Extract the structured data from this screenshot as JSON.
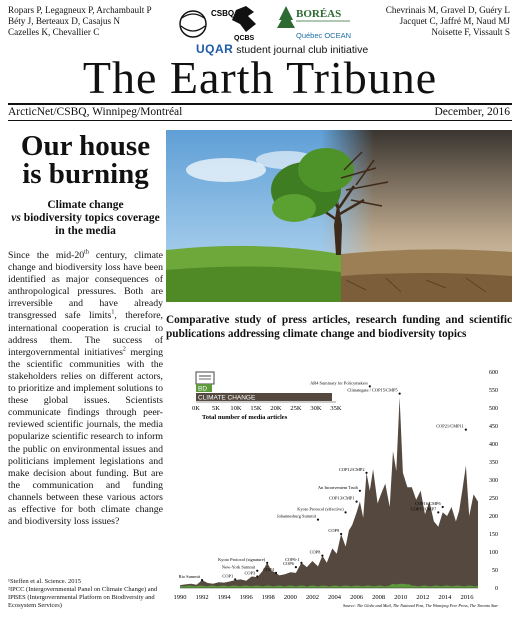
{
  "authors_left": [
    "Ropars P, Legagneux P, Archambault P",
    "Béty J, Berteaux D, Casajus N",
    "Cazelles K, Chevallier C"
  ],
  "authors_right": [
    "Chevrinais M, Gravel D, Guéry L",
    "Jacquet C, Jaffré M, Naud MJ",
    "Noisette F, Vissault S"
  ],
  "logos": {
    "csbq": "CSBQ",
    "qcbs": "QCBS",
    "boreas": "BORÉAS",
    "quebec_ocean": "Québec OCEAN"
  },
  "uqar_line": {
    "brand": "UQAR",
    "text": "student journal club initiative"
  },
  "masthead": "The Earth Tribune",
  "place": "ArcticNet/CSBQ, Winnipeg/Montréal",
  "date": "December, 2016",
  "headline": "Our house is burning",
  "subhead_line1": "Climate change",
  "subhead_vs": "vs",
  "subhead_line2": "biodiversity topics coverage in the media",
  "body": {
    "p1": "Since the mid-20",
    "p1_sup": "th",
    "p2": " century, climate change and biodiversity loss have been identified as major consequences of anthropological pressures. Both are irreversible and have already transgressed safe limits",
    "p2_sup": "1",
    "p3": ", therefore, international cooperation is crucial to address them. The success of intergovernmental initiatives",
    "p3_sup": "2",
    "p4": " merging the scientific communities with the stakeholders relies on different actors, to prioritize and implement solutions to these global issues. Scientists communicate findings through peer-reviewed scientific journals, the media popularize scientific research to inform the public on environmental issues and politicians implement legislations and make decision about funding. But are the communication and funding channels between these various actors as effective for both climate change and biodiversity loss issues?"
  },
  "refs": [
    "¹Steffen et al. Science. 2015",
    "²IPCC (Intergovernmental Panel on Climate Change) and IPBES (Intergovernmental Platform on Biodiversity and Ecosystem Services)"
  ],
  "study_title": "Comparative study of press articles, research funding and scientific publications addressing climate change and biodiversity topics",
  "chart_data": {
    "type": "area",
    "bar_inset": {
      "type": "bar",
      "categories": [
        "BD",
        "CLIMATE CHANGE"
      ],
      "values": [
        4000,
        34000
      ],
      "ticks": [
        "0K",
        "5K",
        "10K",
        "15K",
        "20K",
        "25K",
        "30K",
        "35K"
      ],
      "xlabel": "Total number of media articles",
      "xlim": [
        0,
        35000
      ]
    },
    "x_ticks": [
      "1990",
      "1992",
      "1994",
      "1996",
      "1998",
      "2000",
      "2002",
      "2004",
      "2006",
      "2008",
      "2010",
      "2012",
      "2014",
      "2016"
    ],
    "y_ticks": [
      "0",
      "50",
      "100",
      "150",
      "200",
      "250",
      "300",
      "350",
      "400",
      "450",
      "500",
      "550",
      "600"
    ],
    "xlim": [
      1990,
      2017
    ],
    "ylim": [
      0,
      600
    ],
    "series": [
      {
        "x": [
          1990,
          1990.5,
          1991,
          1991.5,
          1992,
          1992.5,
          1993,
          1993.5,
          1994,
          1994.5,
          1995,
          1995.5,
          1996,
          1996.5,
          1997,
          1997.5,
          1997.9,
          1998.3,
          1998.7,
          1999,
          1999.5,
          2000,
          2000.5,
          2001,
          2001.5,
          2002,
          2002.5,
          2002.9,
          2003.3,
          2003.8,
          2004.2,
          2004.6,
          2005,
          2005.3,
          2005.6,
          2006,
          2006.3,
          2006.6,
          2006.9,
          2007.2,
          2007.5,
          2007.9,
          2008.2,
          2008.6,
          2009,
          2009.3,
          2009.6,
          2009.9,
          2010.2,
          2010.6,
          2011,
          2011.4,
          2011.8,
          2012.2,
          2012.6,
          2013,
          2013.4,
          2013.8,
          2014.2,
          2014.6,
          2015,
          2015.3,
          2015.6,
          2015.9,
          2016.2,
          2016.6,
          2017
        ],
        "values": [
          8,
          10,
          12,
          9,
          22,
          14,
          12,
          16,
          15,
          18,
          22,
          24,
          20,
          32,
          30,
          48,
          70,
          48,
          42,
          35,
          38,
          44,
          42,
          70,
          58,
          75,
          60,
          90,
          70,
          110,
          95,
          150,
          115,
          160,
          175,
          210,
          240,
          195,
          320,
          270,
          330,
          235,
          260,
          290,
          225,
          380,
          325,
          530,
          320,
          280,
          280,
          245,
          270,
          205,
          240,
          185,
          170,
          210,
          200,
          225,
          185,
          215,
          275,
          340,
          200,
          260,
          240
        ]
      }
    ],
    "annotations": [
      {
        "label": "Rio Summit",
        "x": 1992,
        "y": 22
      },
      {
        "label": "COP1",
        "x": 1995,
        "y": 24
      },
      {
        "label": "COP3",
        "x": 1997,
        "y": 32
      },
      {
        "label": "COP4",
        "x": 1998.7,
        "y": 42
      },
      {
        "label": "New-York Summit",
        "x": 1997,
        "y": 48
      },
      {
        "label": "Kyoto Protocol (signature)",
        "x": 1997.9,
        "y": 70
      },
      {
        "label": "COP6",
        "x": 2000.5,
        "y": 58
      },
      {
        "label": "COP6-1",
        "x": 2001,
        "y": 70
      },
      {
        "label": "COP8",
        "x": 2002.9,
        "y": 90
      },
      {
        "label": "COP9",
        "x": 2004.6,
        "y": 150
      },
      {
        "label": "Johannesburg Summit",
        "x": 2002.5,
        "y": 190
      },
      {
        "label": "Kyoto Protocol (effective)",
        "x": 2005,
        "y": 210
      },
      {
        "label": "COP13/CMP1",
        "x": 2006,
        "y": 240
      },
      {
        "label": "An Inconvenient Truth",
        "x": 2006.3,
        "y": 270
      },
      {
        "label": "COP12/CMP2",
        "x": 2006.9,
        "y": 320
      },
      {
        "label": "AR4 Summary for Policymakers",
        "x": 2007.2,
        "y": 560
      },
      {
        "label": "Climategate / COP15/CMP5",
        "x": 2009.9,
        "y": 540
      },
      {
        "label": "COP21/CMP11",
        "x": 2015.9,
        "y": 440
      },
      {
        "label": "COP16/CMP6",
        "x": 2013.8,
        "y": 225
      },
      {
        "label": "COP17/CMP7",
        "x": 2013.4,
        "y": 210
      }
    ],
    "source": "Source: The Globe and Mail, The National Post, The Winnipeg Free Press, The Toronto Star",
    "colors": {
      "cc": "#54483f",
      "bd": "#5d9a3c"
    }
  }
}
